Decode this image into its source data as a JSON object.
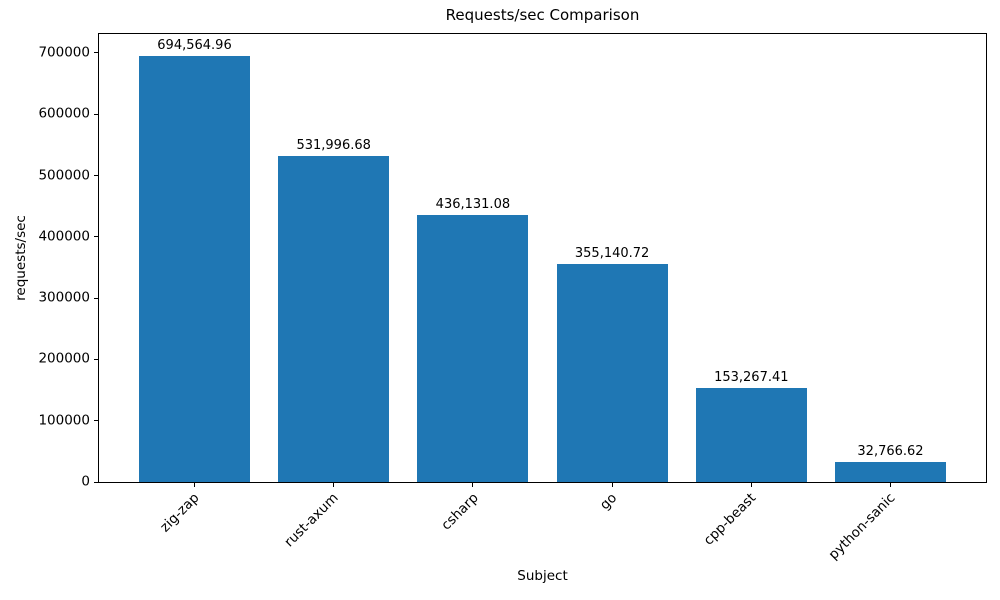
{
  "chart_data": {
    "type": "bar",
    "title": "Requests/sec Comparison",
    "xlabel": "Subject",
    "ylabel": "requests/sec",
    "categories": [
      "zig-zap",
      "rust-axum",
      "csharp",
      "go",
      "cpp-beast",
      "python-sanic"
    ],
    "values": [
      694564.96,
      531996.68,
      436131.08,
      355140.72,
      153267.41,
      32766.62
    ],
    "value_labels": [
      "694,564.96",
      "531,996.68",
      "436,131.08",
      "355,140.72",
      "153,267.41",
      "32,766.62"
    ],
    "yticks": [
      0,
      100000,
      200000,
      300000,
      400000,
      500000,
      600000,
      700000
    ],
    "ytick_labels": [
      "0",
      "100000",
      "200000",
      "300000",
      "400000",
      "500000",
      "600000",
      "700000"
    ],
    "ylim": [
      0,
      730858
    ],
    "x_tick_rotation": 45,
    "grid": false,
    "legend": null,
    "bar_color": "#1f77b4",
    "axis_color": "#000000",
    "background_color": "#ffffff"
  }
}
